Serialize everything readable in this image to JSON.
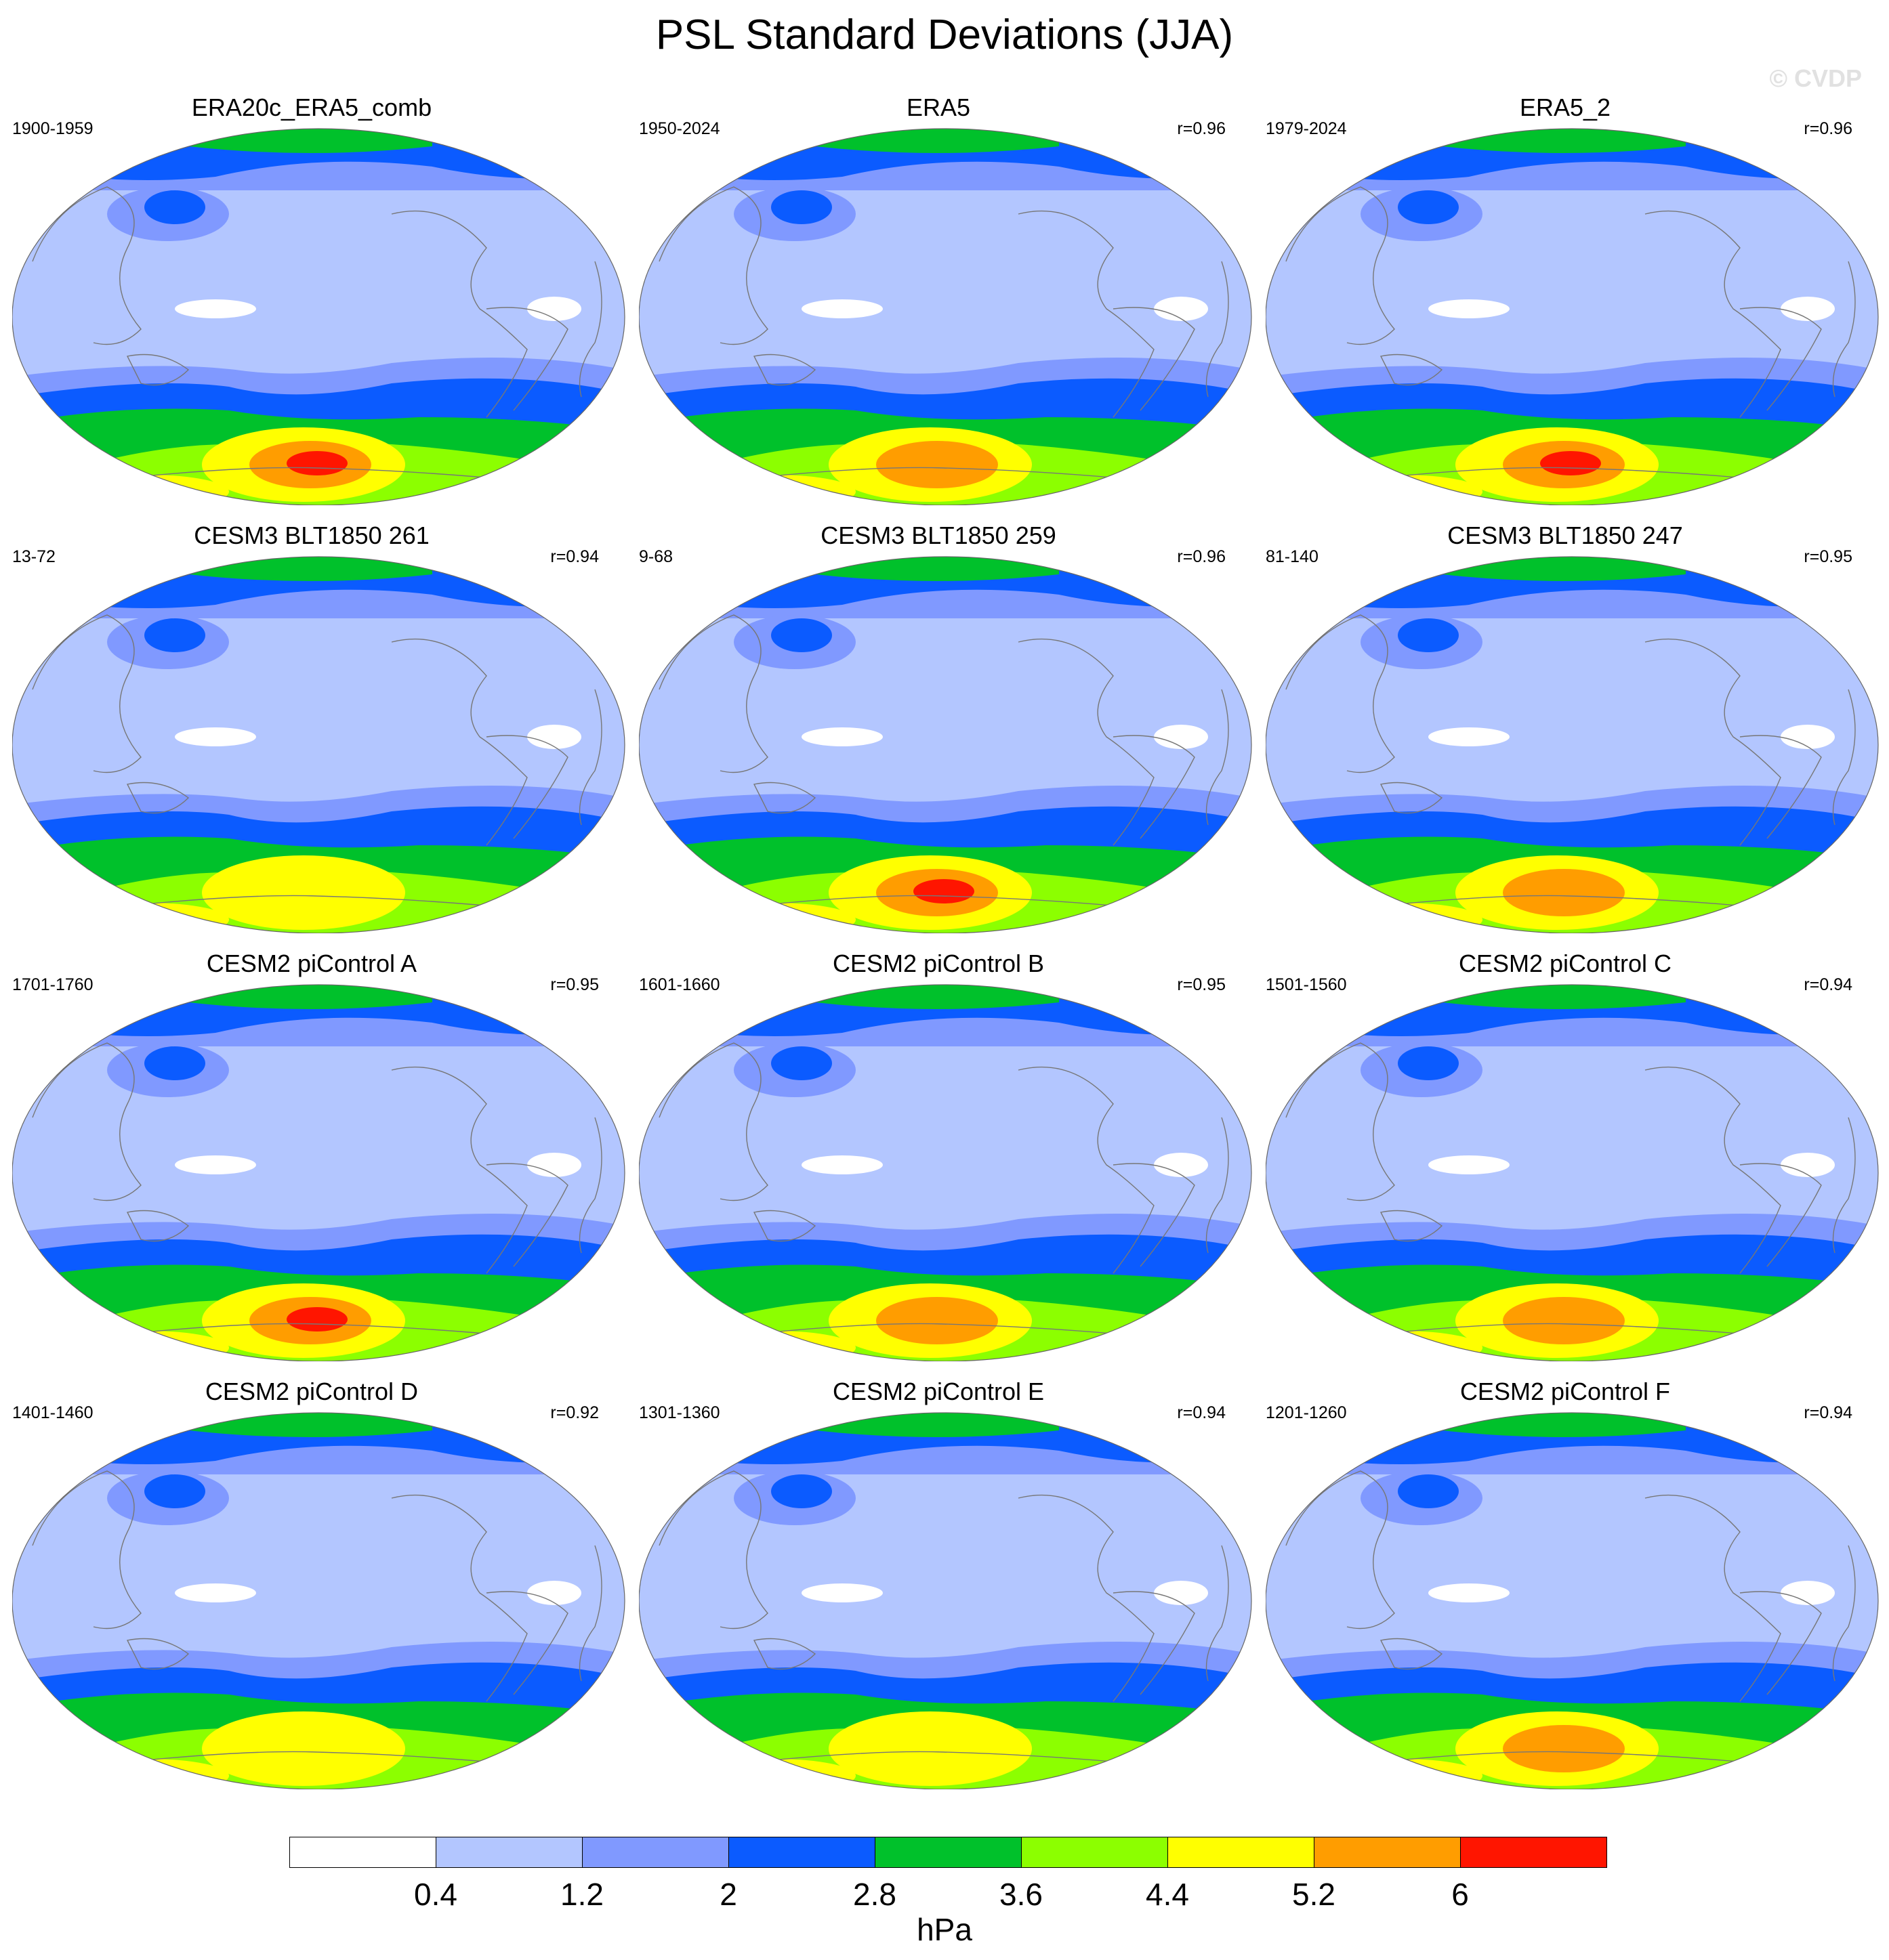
{
  "title": "PSL Standard Deviations (JJA)",
  "watermark": "© CVDP",
  "chart_data": {
    "type": "heatmap",
    "title": "PSL Standard Deviations (JJA)",
    "projection": "Robinson-like world map, Pacific-centered",
    "colorbar": {
      "levels": [
        0.4,
        1.2,
        2,
        2.8,
        3.6,
        4.4,
        5.2,
        6
      ],
      "tick_labels": [
        "0.4",
        "1.2",
        "2",
        "2.8",
        "3.6",
        "4.4",
        "5.2",
        "6"
      ],
      "colors": [
        "#ffffff",
        "#b3c6ff",
        "#8099ff",
        "#0b5bff",
        "#00c12b",
        "#8cff00",
        "#ffff00",
        "#ff9d00",
        "#ff1500"
      ],
      "unit": "hPa"
    },
    "panels": [
      {
        "title": "ERA20c_ERA5_comb",
        "years": "1900-1959",
        "r": "",
        "sh_max_level": 8
      },
      {
        "title": "ERA5",
        "years": "1950-2024",
        "r": "r=0.96",
        "sh_max_level": 7
      },
      {
        "title": "ERA5_2",
        "years": "1979-2024",
        "r": "r=0.96",
        "sh_max_level": 8
      },
      {
        "title": "CESM3 BLT1850 261",
        "years": "13-72",
        "r": "r=0.94",
        "sh_max_level": 6
      },
      {
        "title": "CESM3 BLT1850 259",
        "years": "9-68",
        "r": "r=0.96",
        "sh_max_level": 8
      },
      {
        "title": "CESM3 BLT1850 247",
        "years": "81-140",
        "r": "r=0.95",
        "sh_max_level": 7
      },
      {
        "title": "CESM2 piControl A",
        "years": "1701-1760",
        "r": "r=0.95",
        "sh_max_level": 8
      },
      {
        "title": "CESM2 piControl B",
        "years": "1601-1660",
        "r": "r=0.95",
        "sh_max_level": 7
      },
      {
        "title": "CESM2 piControl C",
        "years": "1501-1560",
        "r": "r=0.94",
        "sh_max_level": 7
      },
      {
        "title": "CESM2 piControl D",
        "years": "1401-1460",
        "r": "r=0.92",
        "sh_max_level": 6
      },
      {
        "title": "CESM2 piControl E",
        "years": "1301-1360",
        "r": "r=0.94",
        "sh_max_level": 6
      },
      {
        "title": "CESM2 piControl F",
        "years": "1201-1260",
        "r": "r=0.94",
        "sh_max_level": 7
      }
    ]
  }
}
